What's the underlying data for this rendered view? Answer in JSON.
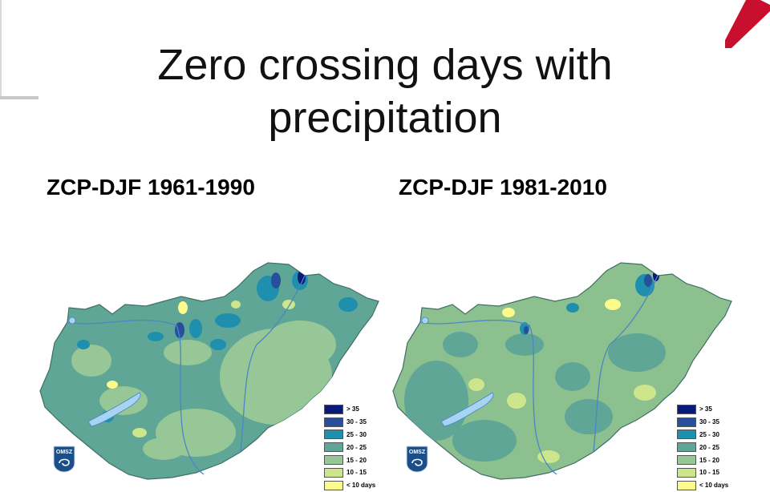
{
  "slide": {
    "title": "Zero crossing days with precipitation",
    "accent_color": "#c8102e"
  },
  "maps": [
    {
      "label": "ZCP-DJF 1961-1990",
      "base_color": "#5fa696"
    },
    {
      "label": "ZCP-DJF 1981-2010",
      "base_color": "#8cc08e"
    }
  ],
  "legend": [
    {
      "label": "> 35",
      "color": "#0a1a7a"
    },
    {
      "label": "30 - 35",
      "color": "#274f9c"
    },
    {
      "label": "25 - 30",
      "color": "#1f8fae"
    },
    {
      "label": "20 - 25",
      "color": "#5fa696"
    },
    {
      "label": "15 - 20",
      "color": "#97c797"
    },
    {
      "label": "10 - 15",
      "color": "#cde68c"
    },
    {
      "label": "< 10 days",
      "color": "#fbfa8a"
    }
  ],
  "logo": {
    "text": "OMSZ"
  },
  "icons": {
    "logo": "omsz-logo-icon",
    "corner": "corner-stripe-icon"
  }
}
